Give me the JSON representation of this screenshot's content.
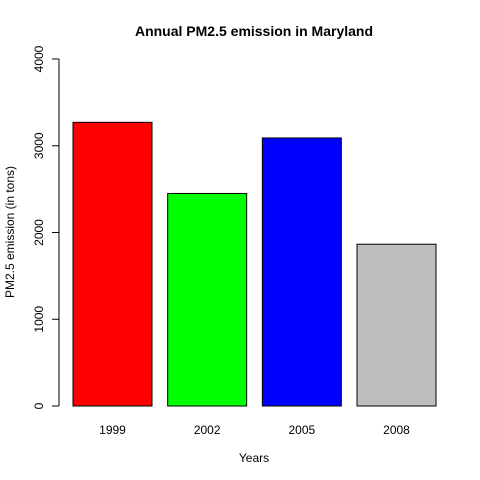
{
  "chart_data": {
    "type": "bar",
    "title": "Annual PM2.5 emission in Maryland",
    "xlabel": "Years",
    "ylabel": "PM2.5 emission (in tons)",
    "categories": [
      "1999",
      "2002",
      "2005",
      "2008"
    ],
    "values": [
      3270,
      2450,
      3090,
      1865
    ],
    "colors": [
      "#FF0000",
      "#00FF00",
      "#0000FF",
      "#BEBEBE"
    ],
    "ylim": [
      0,
      4000
    ],
    "yticks": [
      "0",
      "1000",
      "2000",
      "3000",
      "4000"
    ],
    "grid": false,
    "legend": "none"
  }
}
